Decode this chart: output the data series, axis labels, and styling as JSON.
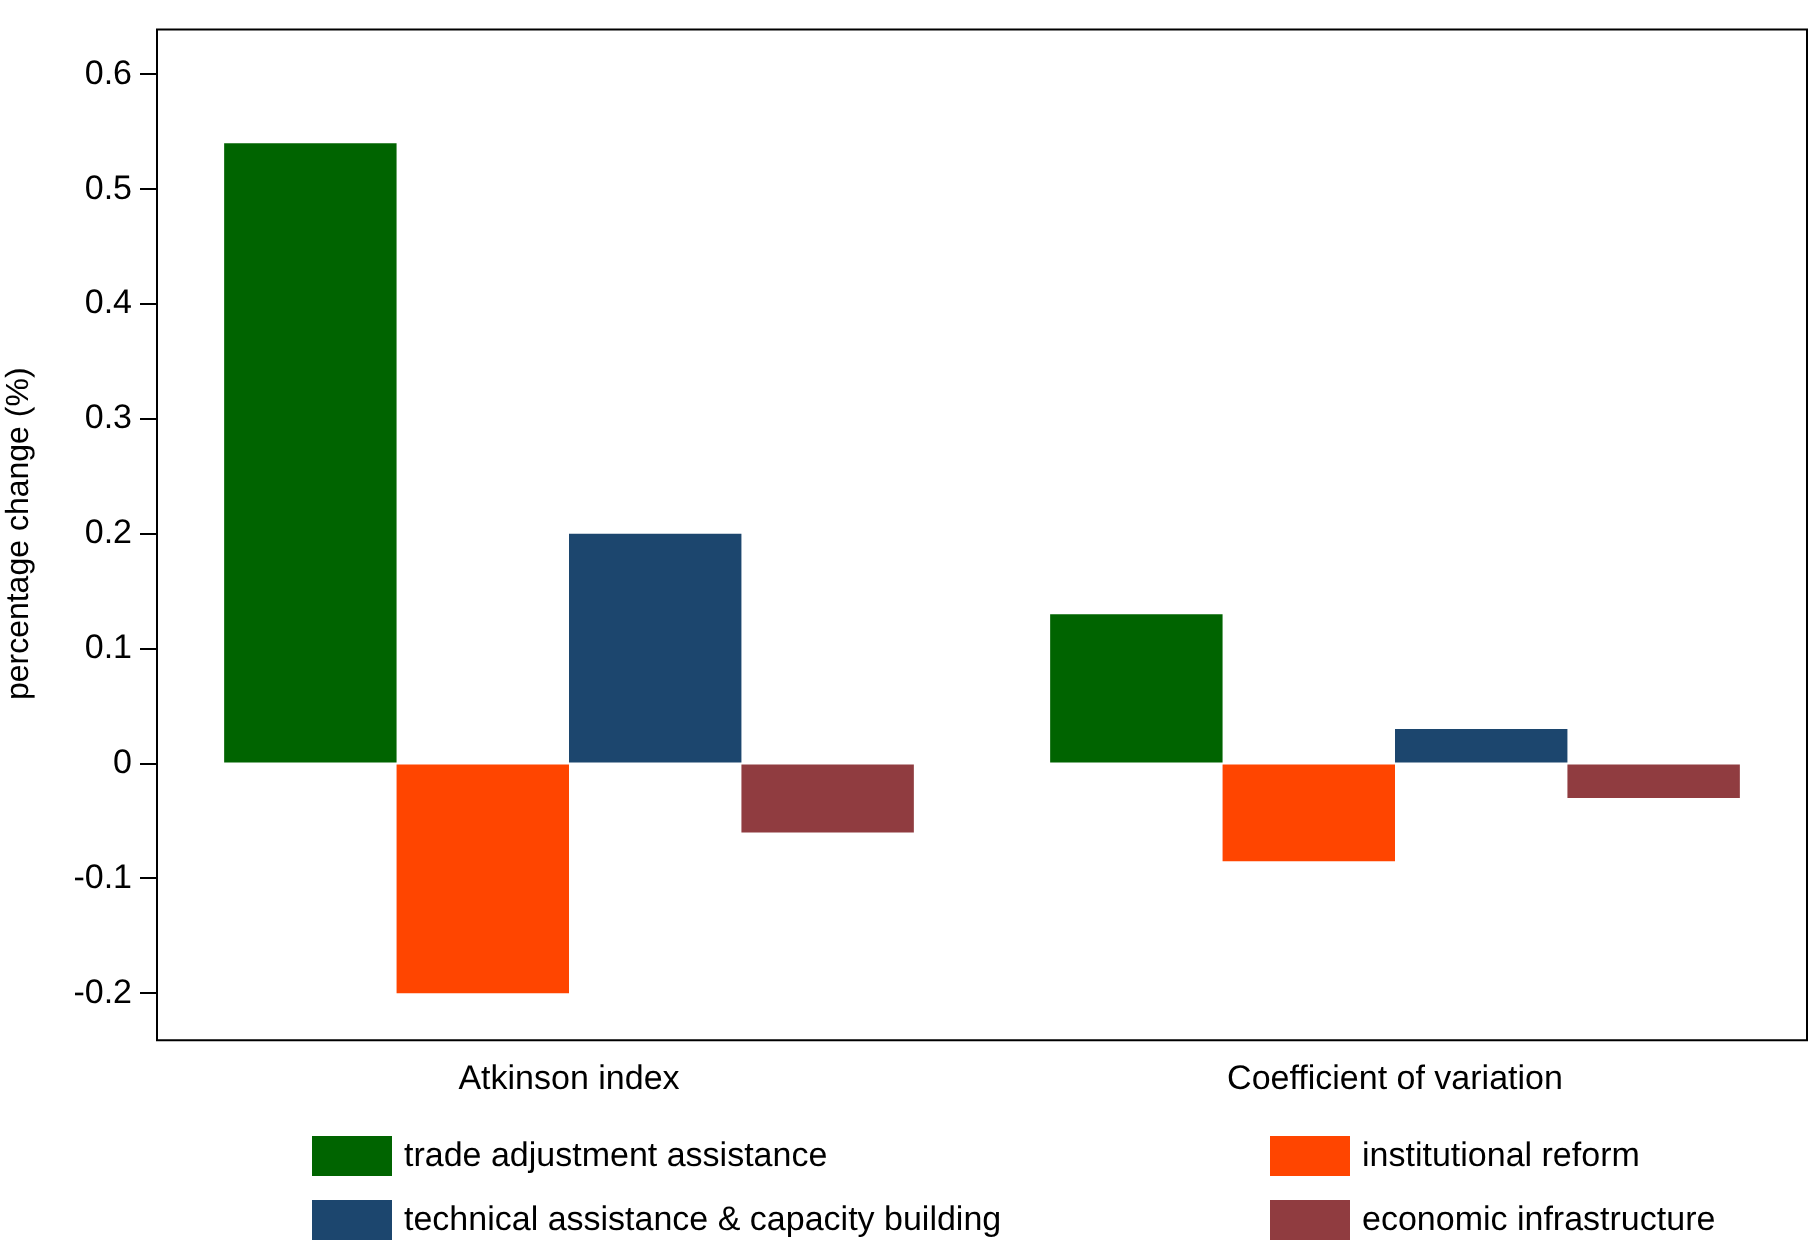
{
  "chart_data": {
    "type": "bar",
    "ylabel": "percentage change (%)",
    "categories": [
      "Atkinson index",
      "Coefficient of variation"
    ],
    "series": [
      {
        "name": "trade adjustment assistance",
        "color": "#006400",
        "values": [
          0.54,
          0.13
        ]
      },
      {
        "name": "institutional reform",
        "color": "#ff4500",
        "values": [
          -0.2,
          -0.085
        ]
      },
      {
        "name": "technical assistance & capacity building",
        "color": "#1c466e",
        "values": [
          0.2,
          0.03
        ]
      },
      {
        "name": "economic infrastructure",
        "color": "#903c40",
        "values": [
          -0.06,
          -0.03
        ]
      }
    ],
    "ylim": [
      -0.24,
      0.64
    ],
    "yticks": [
      -0.2,
      -0.1,
      0,
      0.1,
      0.2,
      0.3,
      0.4,
      0.5,
      0.6
    ],
    "grid": false,
    "legend": "bottom"
  }
}
